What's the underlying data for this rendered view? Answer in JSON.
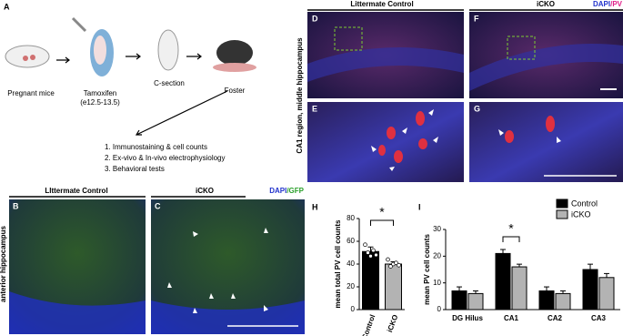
{
  "figure": {
    "panel_a": {
      "label": "A",
      "steps": [
        "Pregnant mice",
        "Tamoxifen",
        "C-section",
        "Foster"
      ],
      "tamoxifen_timing": "(e12.5-13.5)",
      "outcomes": [
        "1. Immunostaining & cell counts",
        "2. Ex-vivo & In-vivo electrophysiology",
        "3. Behavioral tests"
      ]
    },
    "panel_b": {
      "label": "B",
      "title": "LIttermate Control"
    },
    "panel_c": {
      "label": "C",
      "title": "iCKO",
      "stain_1": "DAPI",
      "stain_2": "/GFP"
    },
    "panels_bc_side": "anterior hippocampus",
    "panel_d": {
      "label": "D",
      "title": "Littermate Control"
    },
    "panel_f": {
      "label": "F",
      "title": "iCKO",
      "stain_1": "DAPI",
      "stain_2": "/PV"
    },
    "panel_e": {
      "label": "E"
    },
    "panel_g": {
      "label": "G"
    },
    "panels_dg_side": "CA1 region, middle hippocampus"
  },
  "chart_data": [
    {
      "type": "bar",
      "panel_label": "H",
      "y_label": "mean total PV cell counts",
      "categories": [
        "Control",
        "iCKO"
      ],
      "values": [
        51,
        40
      ],
      "errors": [
        4,
        2
      ],
      "points": [
        [
          57,
          50,
          47,
          52,
          48
        ],
        [
          44,
          38,
          40,
          41,
          39
        ]
      ],
      "colors": [
        "#000000",
        "#b3b3b3"
      ],
      "ylim": [
        0,
        80
      ],
      "yticks": [
        0,
        20,
        40,
        60,
        80
      ],
      "significance": "*"
    },
    {
      "type": "grouped_bar",
      "panel_label": "I",
      "y_label": "mean PV cell counts",
      "categories": [
        "DG Hilus",
        "CA1",
        "CA2",
        "CA3"
      ],
      "series": [
        {
          "name": "Control",
          "color": "#000000",
          "values": [
            7,
            21,
            7,
            15
          ],
          "errors": [
            1.5,
            1.5,
            1.5,
            2
          ]
        },
        {
          "name": "iCKO",
          "color": "#b3b3b3",
          "values": [
            6,
            16,
            6,
            12
          ],
          "errors": [
            1,
            1,
            1,
            1.5
          ]
        }
      ],
      "ylim": [
        0,
        30
      ],
      "yticks": [
        0,
        10,
        20,
        30
      ],
      "significance": "*",
      "significance_category": 1,
      "legend": "top-right"
    }
  ]
}
